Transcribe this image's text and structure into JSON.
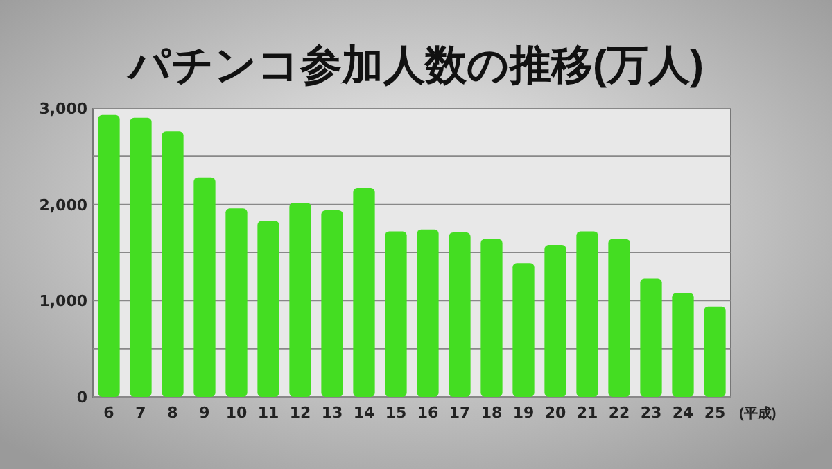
{
  "chart_data": {
    "type": "bar",
    "title": "パチンコ参加人数の推移(万人)",
    "xlabel": "(平成)",
    "categories": [
      "6",
      "7",
      "8",
      "9",
      "10",
      "11",
      "12",
      "13",
      "14",
      "15",
      "16",
      "17",
      "18",
      "19",
      "20",
      "21",
      "22",
      "23",
      "24",
      "25"
    ],
    "values": [
      2930,
      2900,
      2760,
      2280,
      1960,
      1830,
      2020,
      1940,
      2170,
      1720,
      1740,
      1710,
      1640,
      1390,
      1580,
      1720,
      1640,
      1230,
      1080,
      940
    ],
    "color": "#44dd22",
    "ylim": [
      0,
      3000
    ],
    "yticks": [
      0,
      {
        "value": 500,
        "label": null
      },
      {
        "value": 1000,
        "label": "1,000"
      },
      {
        "value": 1500,
        "label": null
      },
      {
        "value": 2000,
        "label": "2,000"
      },
      {
        "value": 2500,
        "label": null
      },
      {
        "value": 3000,
        "label": "3,000"
      }
    ],
    "grid": "y"
  }
}
